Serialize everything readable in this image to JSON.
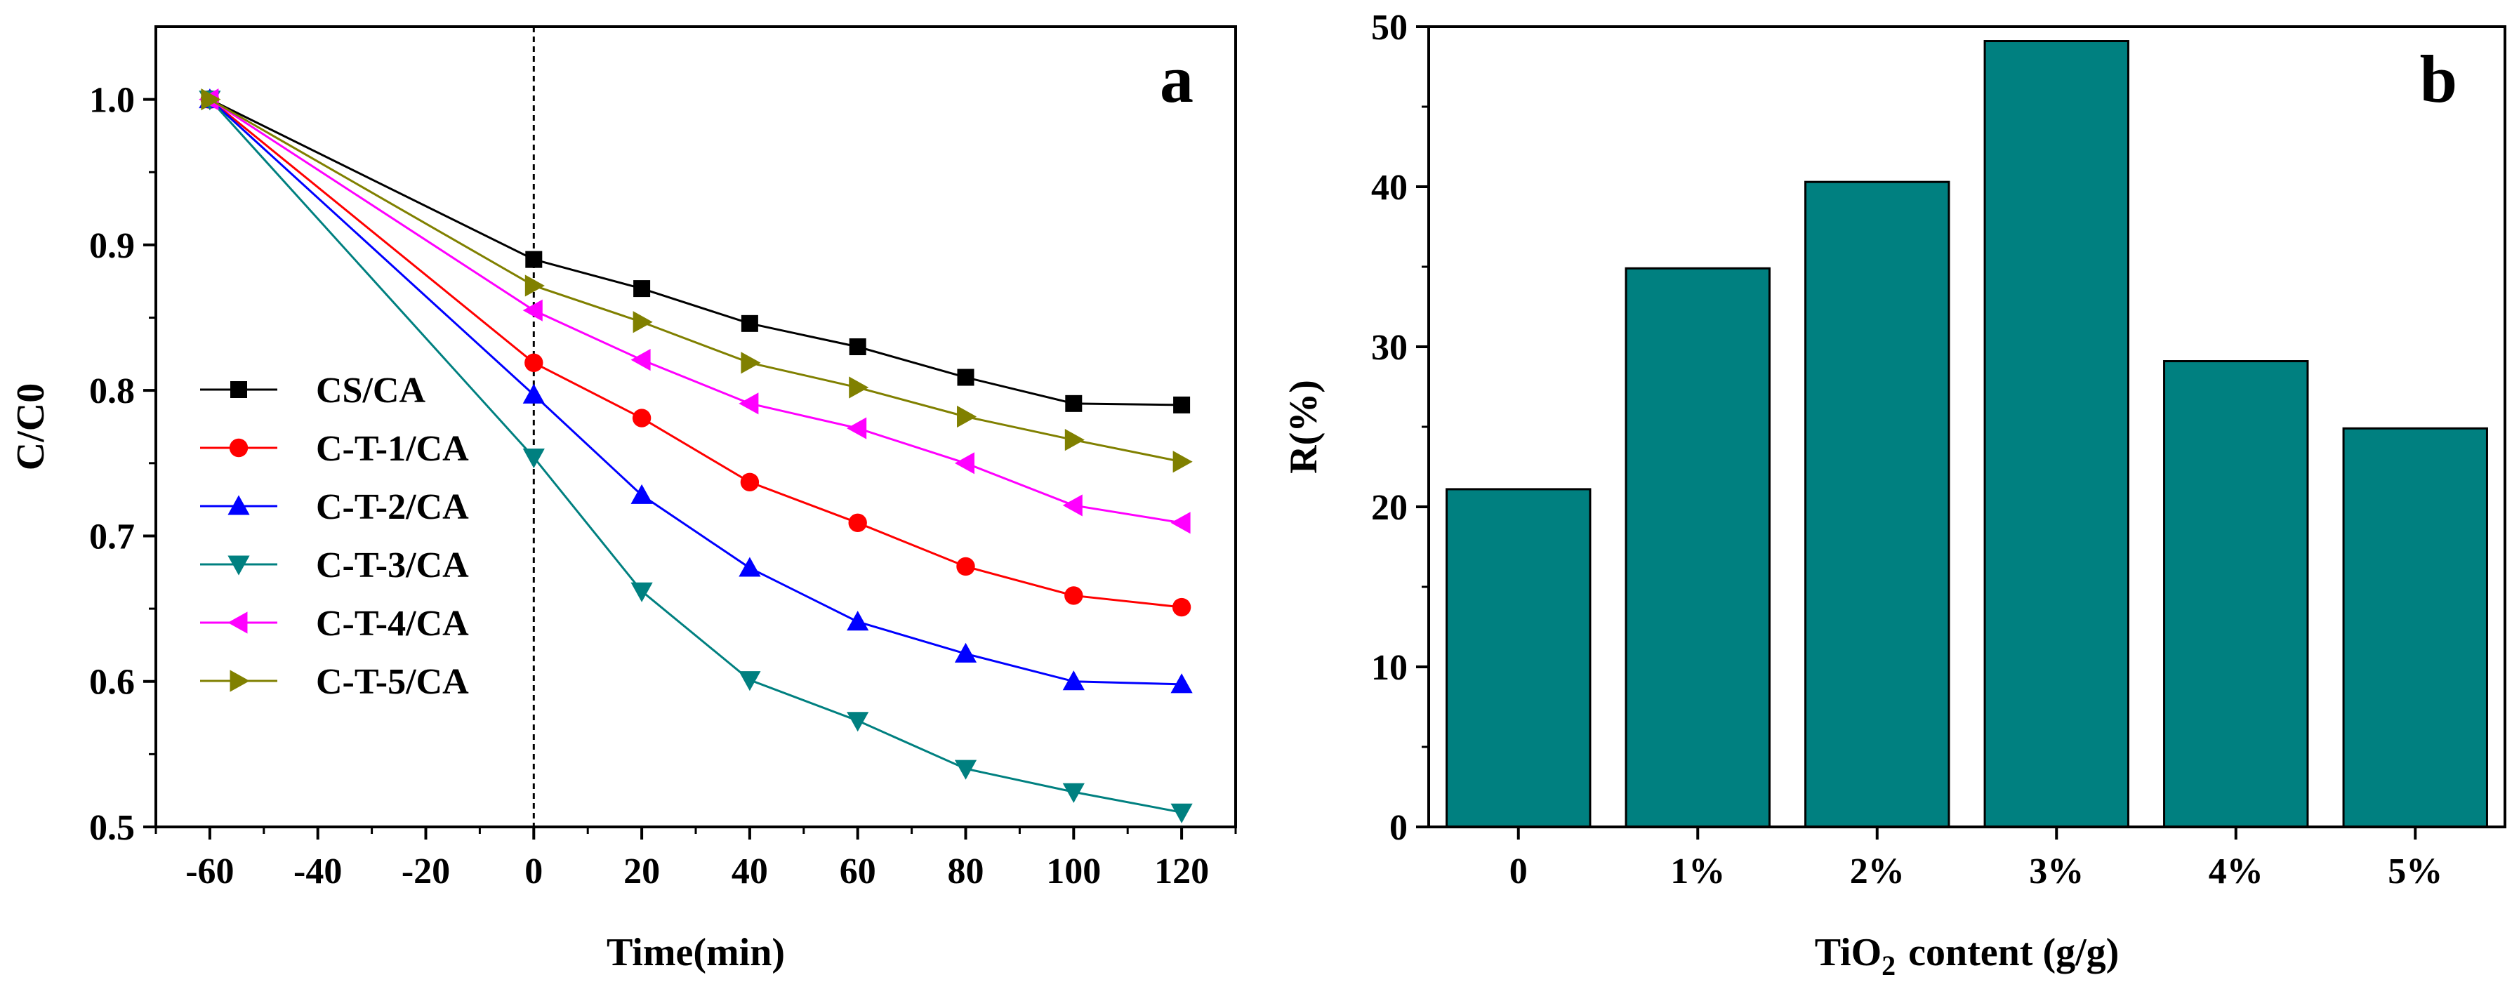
{
  "chart_data": [
    {
      "type": "line",
      "panel_label": "a",
      "xlabel": "Time(min)",
      "ylabel": "C/C0",
      "xlim": [
        -70,
        130
      ],
      "ylim": [
        0.5,
        1.05
      ],
      "xticks": [
        -60,
        -40,
        -20,
        0,
        20,
        40,
        60,
        80,
        100,
        120
      ],
      "yticks": [
        0.5,
        0.6,
        0.7,
        0.8,
        0.9,
        1.0
      ],
      "ytick_labels": [
        "0.5",
        "0.6",
        "0.7",
        "0.8",
        "0.9",
        "1.0"
      ],
      "vline_x": 0,
      "legend_position": "middle-left",
      "x": [
        -60,
        0,
        20,
        40,
        60,
        80,
        100,
        120
      ],
      "series": [
        {
          "name": "CS/CA",
          "color": "#000000",
          "marker": "square",
          "values": [
            1.0,
            0.89,
            0.87,
            0.846,
            0.83,
            0.809,
            0.791,
            0.79
          ]
        },
        {
          "name": "C-T-1/CA",
          "color": "#ff0000",
          "marker": "circle",
          "values": [
            1.0,
            0.819,
            0.781,
            0.737,
            0.709,
            0.679,
            0.659,
            0.651
          ]
        },
        {
          "name": "C-T-2/CA",
          "color": "#0000ff",
          "marker": "triangle-up",
          "values": [
            1.0,
            0.797,
            0.728,
            0.678,
            0.641,
            0.619,
            0.6,
            0.598
          ]
        },
        {
          "name": "C-T-3/CA",
          "color": "#008080",
          "marker": "triangle-down",
          "values": [
            1.0,
            0.754,
            0.662,
            0.601,
            0.573,
            0.54,
            0.524,
            0.51
          ]
        },
        {
          "name": "C-T-4/CA",
          "color": "#ff00ff",
          "marker": "triangle-left",
          "values": [
            1.0,
            0.855,
            0.821,
            0.791,
            0.774,
            0.75,
            0.721,
            0.709
          ]
        },
        {
          "name": "C-T-5/CA",
          "color": "#808000",
          "marker": "triangle-right",
          "values": [
            1.0,
            0.872,
            0.847,
            0.819,
            0.802,
            0.782,
            0.766,
            0.751
          ]
        }
      ]
    },
    {
      "type": "bar",
      "panel_label": "b",
      "xlabel_main": "TiO",
      "xlabel_sub": "2",
      "xlabel_rest": "content (g/g)",
      "ylabel": "R(%)",
      "ylim": [
        0,
        50
      ],
      "yticks": [
        0,
        10,
        20,
        30,
        40,
        50
      ],
      "categories": [
        "0",
        "1%",
        "2%",
        "3%",
        "4%",
        "5%"
      ],
      "values": [
        21.1,
        34.9,
        40.3,
        49.1,
        29.1,
        24.9
      ],
      "bar_color": "#008080"
    }
  ]
}
